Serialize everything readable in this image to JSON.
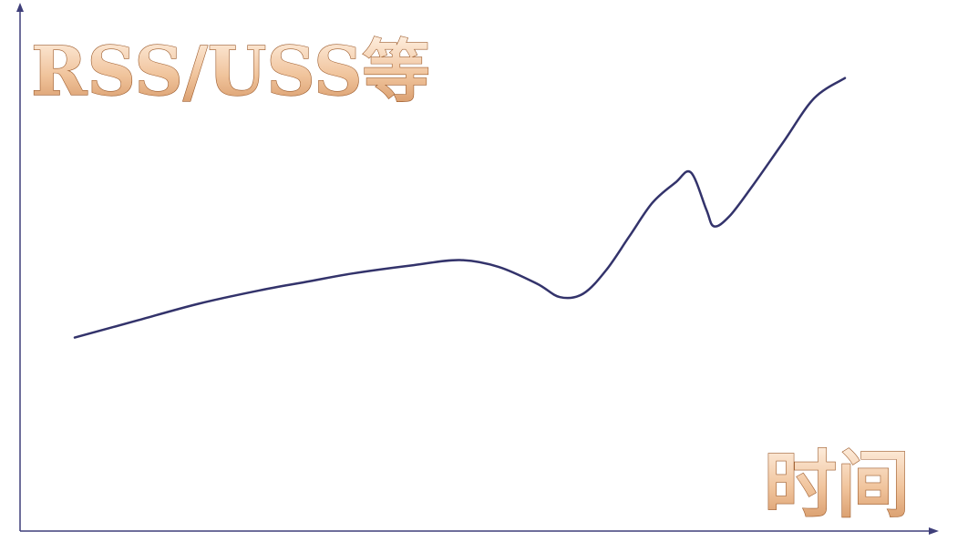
{
  "chart_data": {
    "type": "line",
    "ylabel": "RSS/USS等",
    "xlabel": "时间",
    "x_ticks": [],
    "y_ticks": [],
    "grid": false,
    "legend": "none",
    "xlim": [
      0,
      100
    ],
    "ylim": [
      0,
      100
    ],
    "series": [
      {
        "values": [
          [
            0,
            22
          ],
          [
            8,
            27
          ],
          [
            16,
            32
          ],
          [
            24,
            36
          ],
          [
            30,
            38.5
          ],
          [
            36,
            41
          ],
          [
            44,
            43.5
          ],
          [
            50,
            45
          ],
          [
            55,
            43
          ],
          [
            60,
            38
          ],
          [
            63,
            34
          ],
          [
            66,
            35
          ],
          [
            69,
            42
          ],
          [
            72,
            52
          ],
          [
            75,
            62
          ],
          [
            78,
            68
          ],
          [
            80,
            71
          ],
          [
            82,
            60
          ],
          [
            83,
            55
          ],
          [
            85,
            58
          ],
          [
            88,
            67
          ],
          [
            92,
            80
          ],
          [
            96,
            93
          ],
          [
            100,
            99
          ]
        ]
      }
    ],
    "colors": {
      "line": "#33336b",
      "axis": "#3f3f7a",
      "label_light": "#fbe3cc",
      "label_dark": "#c98a5a",
      "label_stroke": "#9c5a2a"
    }
  }
}
